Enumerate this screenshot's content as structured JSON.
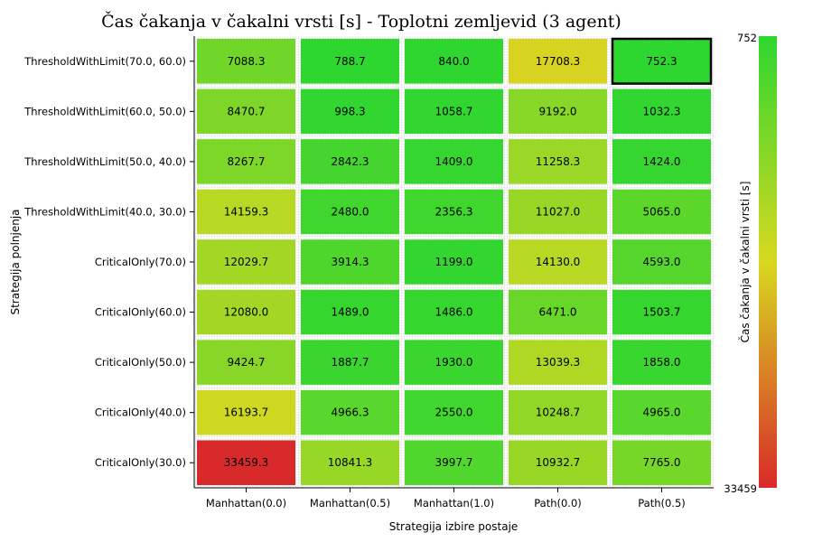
{
  "chart_data": {
    "type": "heatmap",
    "title": "Čas čakanja v čakalni vrsti [s] - Toplotni zemljevid (3 agent)",
    "xlabel": "Strategija izbire postaje",
    "ylabel": "Strategija polnjenja",
    "x_categories": [
      "Manhattan(0.0)",
      "Manhattan(0.5)",
      "Manhattan(1.0)",
      "Path(0.0)",
      "Path(0.5)"
    ],
    "y_categories": [
      "ThresholdWithLimit(70.0, 60.0)",
      "ThresholdWithLimit(60.0, 50.0)",
      "ThresholdWithLimit(50.0, 40.0)",
      "ThresholdWithLimit(40.0, 30.0)",
      "CriticalOnly(70.0)",
      "CriticalOnly(60.0)",
      "CriticalOnly(50.0)",
      "CriticalOnly(40.0)",
      "CriticalOnly(30.0)"
    ],
    "values": [
      [
        7088.3,
        788.7,
        840.0,
        17708.3,
        752.3
      ],
      [
        8470.7,
        998.3,
        1058.7,
        9192.0,
        1032.3
      ],
      [
        8267.7,
        2842.3,
        1409.0,
        11258.3,
        1424.0
      ],
      [
        14159.3,
        2480.0,
        2356.3,
        11027.0,
        5065.0
      ],
      [
        12029.7,
        3914.3,
        1199.0,
        14130.0,
        4593.0
      ],
      [
        12080.0,
        1489.0,
        1486.0,
        6471.0,
        1503.7
      ],
      [
        9424.7,
        1887.7,
        1930.0,
        13039.3,
        1858.0
      ],
      [
        16193.7,
        4966.3,
        2550.0,
        10248.7,
        4965.0
      ],
      [
        33459.3,
        10841.3,
        3997.7,
        10932.7,
        7765.0
      ]
    ],
    "value_labels": [
      [
        "7088.3",
        "788.7",
        "840.0",
        "17708.3",
        "752.3"
      ],
      [
        "8470.7",
        "998.3",
        "1058.7",
        "9192.0",
        "1032.3"
      ],
      [
        "8267.7",
        "2842.3",
        "1409.0",
        "11258.3",
        "1424.0"
      ],
      [
        "14159.3",
        "2480.0",
        "2356.3",
        "11027.0",
        "5065.0"
      ],
      [
        "12029.7",
        "3914.3",
        "1199.0",
        "14130.0",
        "4593.0"
      ],
      [
        "12080.0",
        "1489.0",
        "1486.0",
        "6471.0",
        "1503.7"
      ],
      [
        "9424.7",
        "1887.7",
        "1930.0",
        "13039.3",
        "1858.0"
      ],
      [
        "16193.7",
        "4966.3",
        "2550.0",
        "10248.7",
        "4965.0"
      ],
      [
        "33459.3",
        "10841.3",
        "3997.7",
        "10932.7",
        "7765.0"
      ]
    ],
    "highlight_cell": {
      "row": 0,
      "col": 4
    },
    "colorbar": {
      "label": "Čas čakanja v čakalni vrsti [s]",
      "min_label": "752",
      "max_label": "33459",
      "min": 752,
      "max": 33459,
      "colors": {
        "low": "#2ed630",
        "mid": "#d8d820",
        "high": "#d82a2a"
      }
    },
    "grid": true,
    "colorbar_placement": "right"
  }
}
